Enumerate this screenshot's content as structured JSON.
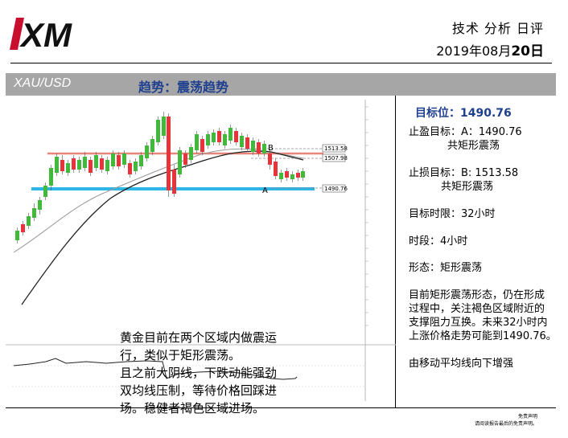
{
  "header": {
    "logo": "XM",
    "report_title": "技术 分析 日评",
    "date_prefix": "2019年08月",
    "date_day": "20日"
  },
  "bar": {
    "symbol": "XAU/USD",
    "trend": "趋势：震荡趋势"
  },
  "chart": {
    "label_A": "A",
    "label_B": "B",
    "price_tags": [
      "1513.58",
      "1507.98",
      "1490.76"
    ],
    "note_lines": [
      "黄金目前在两个区域内做震运",
      "行，类似于矩形震荡。",
      "且之前大阴线，下跌动能强劲",
      "双均线压制，等待价格回踩进",
      "场。稳健者褐色区域进场。"
    ]
  },
  "side": {
    "target": "目标位：1490.76",
    "tp_line1": "止盈目标：A：1490.76",
    "tp_line2": "共矩形震荡",
    "sl_line1": "止损目标：B: 1513.58",
    "sl_line2": "共矩形震荡",
    "horizon": "目标时限：32小时",
    "timeframe": "时段：4小时",
    "pattern": "形态：矩形震荡",
    "analysis": [
      "目前矩形震荡形态，仍在形成",
      "过程中，关注褐色区域附近的",
      "支撑阻力互换。未来32小时内",
      "上涨价格走势可能到1490.76。"
    ],
    "ma_note": "由移动平均线向下增强"
  },
  "colors": {
    "bull": "#41b93a",
    "bear": "#e7333a",
    "support_line": "#2eb6e6",
    "resistance_line": "#e8867b",
    "title_blue": "#1f3f8f"
  },
  "disclaimer": {
    "line1": "免责声明",
    "line2": "请阅读报告最后的免责声明。"
  }
}
